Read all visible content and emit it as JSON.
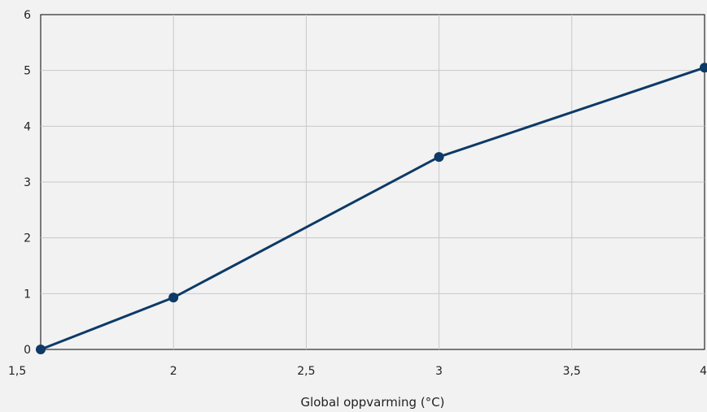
{
  "chart_data": {
    "type": "line",
    "title": "",
    "xlabel": "Global oppvarming (°C)",
    "ylabel": "",
    "xlim": [
      1.5,
      4
    ],
    "ylim": [
      0,
      6
    ],
    "grid": true,
    "x_ticks": [
      {
        "value": 1.5,
        "label": "1,5"
      },
      {
        "value": 2,
        "label": "2"
      },
      {
        "value": 2.5,
        "label": "2,5"
      },
      {
        "value": 3,
        "label": "3"
      },
      {
        "value": 3.5,
        "label": "3,5"
      },
      {
        "value": 4,
        "label": "4"
      }
    ],
    "y_ticks": [
      {
        "value": 0,
        "label": "0"
      },
      {
        "value": 1,
        "label": "1"
      },
      {
        "value": 2,
        "label": "2"
      },
      {
        "value": 3,
        "label": "3"
      },
      {
        "value": 4,
        "label": "4"
      },
      {
        "value": 5,
        "label": "5"
      },
      {
        "value": 6,
        "label": "6"
      }
    ],
    "series": [
      {
        "color": "#0d3a66",
        "x": [
          1.5,
          2,
          3,
          4
        ],
        "y": [
          0,
          0.93,
          3.45,
          5.05
        ]
      }
    ]
  }
}
